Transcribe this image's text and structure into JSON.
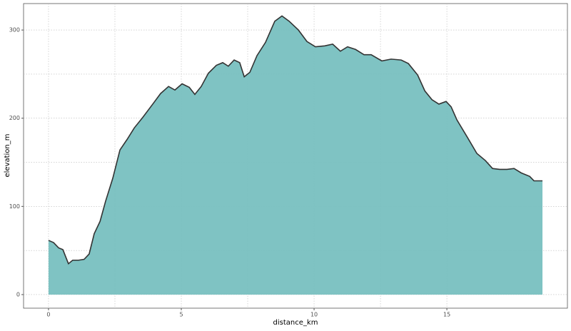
{
  "chart_data": {
    "type": "area",
    "x_label": "distance_km",
    "y_label": "elevation_m",
    "x": [
      0,
      0.19,
      0.38,
      0.54,
      0.75,
      0.91,
      1.13,
      1.34,
      1.53,
      1.72,
      1.94,
      2.15,
      2.42,
      2.69,
      2.96,
      3.23,
      3.55,
      3.95,
      4.22,
      4.52,
      4.76,
      5.03,
      5.3,
      5.51,
      5.75,
      6.02,
      6.32,
      6.56,
      6.77,
      6.99,
      7.2,
      7.37,
      7.58,
      7.85,
      8.17,
      8.52,
      8.79,
      9.06,
      9.41,
      9.73,
      10.05,
      10.4,
      10.7,
      10.99,
      11.26,
      11.56,
      11.88,
      12.15,
      12.55,
      12.9,
      13.28,
      13.55,
      13.9,
      14.17,
      14.44,
      14.7,
      14.97,
      15.16,
      15.38,
      15.78,
      16.13,
      16.45,
      16.72,
      16.99,
      17.26,
      17.53,
      17.8,
      18.12,
      18.28,
      18.6
    ],
    "values": [
      61.5,
      59,
      53,
      51,
      35,
      39,
      39,
      40,
      46,
      69,
      83,
      106,
      132,
      164,
      176,
      189,
      201,
      217,
      228,
      236,
      232,
      239,
      235,
      227,
      236,
      251,
      260,
      263,
      259,
      266,
      263,
      247,
      252,
      271,
      286,
      310,
      316,
      310,
      300,
      287,
      281,
      282,
      284,
      276,
      281,
      278,
      272,
      272,
      265,
      267,
      266,
      262,
      249,
      231,
      221,
      216,
      219,
      213,
      198,
      178,
      160,
      152,
      143,
      142,
      142,
      143,
      138,
      134,
      129,
      129
    ],
    "color": "#78c0c0",
    "line_color": "#333333",
    "xlim": [
      -0.94,
      19.54
    ],
    "xticks": [
      0,
      5,
      10,
      15
    ],
    "ylim": [
      -15.4,
      330
    ],
    "yticks": [
      0,
      100,
      200,
      300
    ],
    "grid": true
  }
}
